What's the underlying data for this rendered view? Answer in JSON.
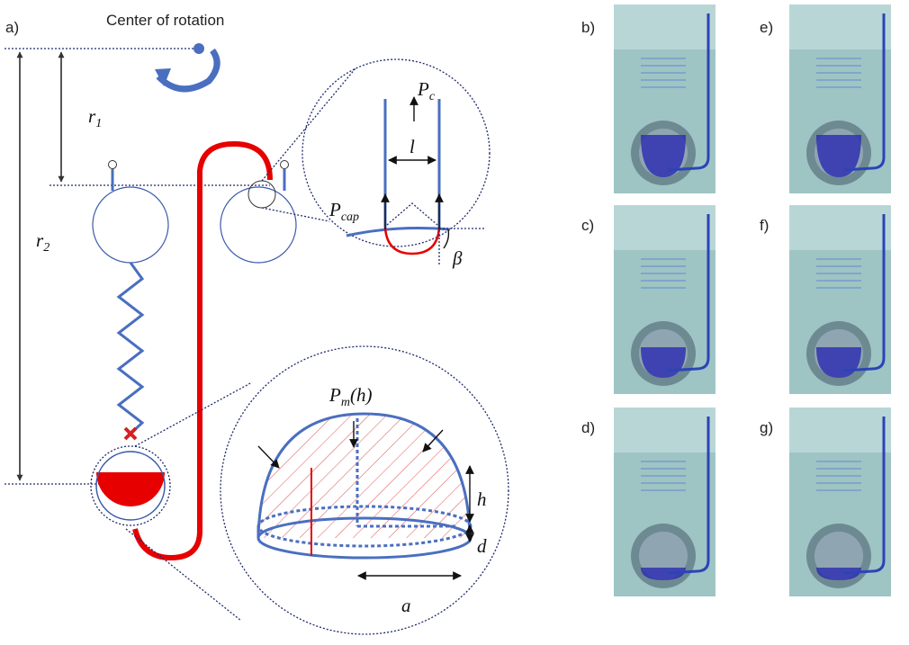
{
  "panel_labels": {
    "a": "a)",
    "b": "b)",
    "c": "c)",
    "d": "d)",
    "e": "e)",
    "f": "f)",
    "g": "g)"
  },
  "center_label": "Center of rotation",
  "labels": {
    "r1": {
      "base": "r",
      "sub": "1"
    },
    "r2": {
      "base": "r",
      "sub": "2"
    },
    "pc": {
      "base": "P",
      "sub": "c"
    },
    "l": "l",
    "pcap": {
      "base": "P",
      "sub": "cap"
    },
    "beta": "β",
    "pm": "P",
    "pm_sub": "m",
    "pm_arg": "(h)",
    "h": "h",
    "d": "d",
    "a": "a"
  }
}
